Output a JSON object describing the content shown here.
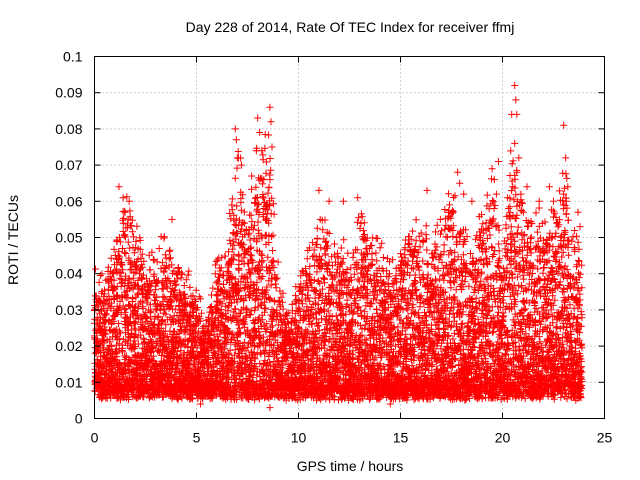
{
  "chart_data": {
    "type": "scatter",
    "title": "Day 228 of 2014, Rate Of TEC Index for receiver ffmj",
    "xlabel": "GPS time / hours",
    "ylabel": "ROTI / TECUs",
    "xlim": [
      0,
      25
    ],
    "ylim": [
      0,
      0.1
    ],
    "xticks": [
      0,
      5,
      10,
      15,
      20,
      25
    ],
    "yticks": [
      0,
      0.01,
      0.02,
      0.03,
      0.04,
      0.05,
      0.06,
      0.07,
      0.08,
      0.09,
      0.1
    ],
    "grid": true,
    "legend": "none",
    "marker": "+",
    "color": "#ff0000",
    "data_extent_hours": [
      0,
      23.9
    ],
    "envelope": {
      "description": "estimated per-hour upper envelope of the red '+' cloud (ROTI, TECU/min)",
      "hours": [
        0,
        0.5,
        1,
        1.5,
        2,
        2.5,
        3,
        3.5,
        4,
        4.5,
        5,
        5.5,
        6,
        6.5,
        7,
        7.5,
        8,
        8.5,
        9,
        9.5,
        10,
        10.5,
        11,
        11.5,
        12,
        12.5,
        13,
        13.5,
        14,
        14.5,
        15,
        15.5,
        16,
        16.5,
        17,
        17.5,
        18,
        18.5,
        19,
        19.5,
        20,
        20.5,
        21,
        21.5,
        22,
        22.5,
        23,
        23.5,
        23.9
      ],
      "upper": [
        0.044,
        0.043,
        0.052,
        0.064,
        0.055,
        0.05,
        0.046,
        0.054,
        0.047,
        0.042,
        0.036,
        0.029,
        0.047,
        0.052,
        0.08,
        0.062,
        0.083,
        0.086,
        0.045,
        0.03,
        0.04,
        0.05,
        0.063,
        0.055,
        0.052,
        0.047,
        0.062,
        0.055,
        0.05,
        0.047,
        0.05,
        0.063,
        0.056,
        0.052,
        0.061,
        0.068,
        0.058,
        0.05,
        0.062,
        0.071,
        0.048,
        0.092,
        0.06,
        0.064,
        0.06,
        0.062,
        0.081,
        0.056,
        0.045
      ],
      "base_lower": 0.007
    },
    "spikes": [
      {
        "x": 1.2,
        "y": 0.064
      },
      {
        "x": 1.4,
        "y": 0.061
      },
      {
        "x": 1.7,
        "y": 0.06
      },
      {
        "x": 3.8,
        "y": 0.055
      },
      {
        "x": 6.9,
        "y": 0.08
      },
      {
        "x": 6.95,
        "y": 0.077
      },
      {
        "x": 7.0,
        "y": 0.072
      },
      {
        "x": 7.2,
        "y": 0.07
      },
      {
        "x": 7.7,
        "y": 0.067
      },
      {
        "x": 8.0,
        "y": 0.083
      },
      {
        "x": 8.1,
        "y": 0.079
      },
      {
        "x": 8.2,
        "y": 0.074
      },
      {
        "x": 8.3,
        "y": 0.066
      },
      {
        "x": 8.6,
        "y": 0.086
      },
      {
        "x": 8.65,
        "y": 0.082
      },
      {
        "x": 8.7,
        "y": 0.075
      },
      {
        "x": 8.3,
        "y": 0.058
      },
      {
        "x": 11.0,
        "y": 0.063
      },
      {
        "x": 11.5,
        "y": 0.06
      },
      {
        "x": 12.2,
        "y": 0.06
      },
      {
        "x": 12.9,
        "y": 0.061
      },
      {
        "x": 16.3,
        "y": 0.063
      },
      {
        "x": 17.8,
        "y": 0.068
      },
      {
        "x": 17.9,
        "y": 0.065
      },
      {
        "x": 18.1,
        "y": 0.062
      },
      {
        "x": 18.5,
        "y": 0.06
      },
      {
        "x": 19.8,
        "y": 0.071
      },
      {
        "x": 19.6,
        "y": 0.066
      },
      {
        "x": 19.7,
        "y": 0.062
      },
      {
        "x": 20.3,
        "y": 0.058
      },
      {
        "x": 20.6,
        "y": 0.092
      },
      {
        "x": 20.65,
        "y": 0.088
      },
      {
        "x": 20.7,
        "y": 0.084
      },
      {
        "x": 20.6,
        "y": 0.076
      },
      {
        "x": 20.8,
        "y": 0.072
      },
      {
        "x": 20.7,
        "y": 0.068
      },
      {
        "x": 20.5,
        "y": 0.064
      },
      {
        "x": 20.9,
        "y": 0.062
      },
      {
        "x": 21.2,
        "y": 0.064
      },
      {
        "x": 21.8,
        "y": 0.06
      },
      {
        "x": 22.3,
        "y": 0.064
      },
      {
        "x": 22.5,
        "y": 0.06
      },
      {
        "x": 23.0,
        "y": 0.081
      },
      {
        "x": 23.1,
        "y": 0.072
      },
      {
        "x": 23.2,
        "y": 0.064
      },
      {
        "x": 23.0,
        "y": 0.062
      },
      {
        "x": 23.7,
        "y": 0.057
      },
      {
        "x": 23.8,
        "y": 0.053
      },
      {
        "x": 5.2,
        "y": 0.004
      },
      {
        "x": 8.6,
        "y": 0.003
      },
      {
        "x": 14.5,
        "y": 0.004
      }
    ]
  }
}
